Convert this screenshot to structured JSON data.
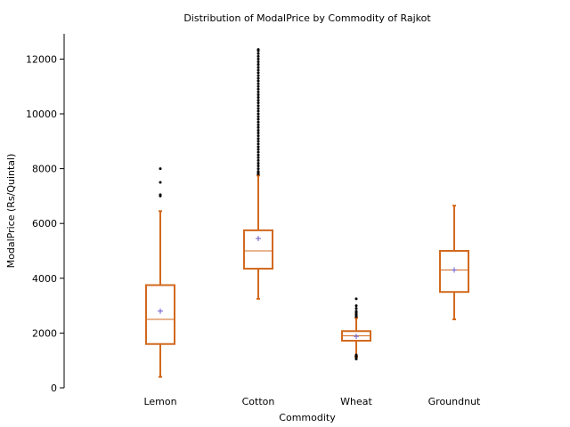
{
  "chart_data": {
    "type": "box",
    "title": "Distribution of ModalPrice by Commodity of Rajkot",
    "xlabel": "Commodity",
    "ylabel": "ModalPrice (Rs/Quintal)",
    "ylim": [
      0,
      12800
    ],
    "yticks": [
      0,
      2000,
      4000,
      6000,
      8000,
      10000,
      12000
    ],
    "grid": false,
    "box_color": "#d2691e",
    "mean_marker_color": "#6a5acd",
    "outlier_color": "#000000",
    "categories": [
      "Lemon",
      "Cotton",
      "Wheat",
      "Groundnut"
    ],
    "boxes": [
      {
        "category": "Lemon",
        "whisker_low": 400,
        "q1": 1600,
        "median": 2500,
        "q3": 3750,
        "whisker_high": 6450,
        "mean": 2800,
        "outliers": [
          7000,
          7050,
          7500,
          8000
        ]
      },
      {
        "category": "Cotton",
        "whisker_low": 3250,
        "q1": 4350,
        "median": 5000,
        "q3": 5750,
        "whisker_high": 7750,
        "mean": 5450,
        "outliers": [
          7800,
          7850,
          7900,
          8000,
          8100,
          8200,
          8300,
          8400,
          8500,
          8600,
          8700,
          8800,
          8900,
          9000,
          9100,
          9200,
          9300,
          9400,
          9500,
          9600,
          9700,
          9800,
          9900,
          10000,
          10100,
          10200,
          10300,
          10400,
          10500,
          10600,
          10700,
          10800,
          10900,
          11000,
          11100,
          11200,
          11300,
          11400,
          11500,
          11600,
          11700,
          11800,
          11900,
          12000,
          12100,
          12200,
          12300,
          12350
        ]
      },
      {
        "category": "Wheat",
        "whisker_low": 1150,
        "q1": 1720,
        "median": 1900,
        "q3": 2070,
        "whisker_high": 2550,
        "mean": 1880,
        "outliers": [
          1050,
          1100,
          1150,
          1200,
          2600,
          2650,
          2700,
          2750,
          2800,
          2900,
          3000,
          3250
        ]
      },
      {
        "category": "Groundnut",
        "whisker_low": 2500,
        "q1": 3500,
        "median": 4300,
        "q3": 5000,
        "whisker_high": 6650,
        "mean": 4300,
        "outliers": []
      }
    ]
  }
}
